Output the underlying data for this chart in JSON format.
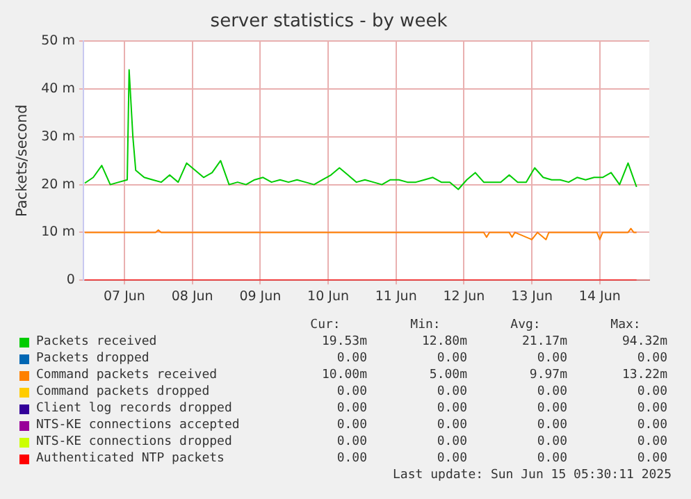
{
  "chart_data": {
    "type": "line",
    "title": "server statistics - by week",
    "ylabel": "Packets/second",
    "xlim": [
      "2025-06-06T21:30",
      "2025-06-15T05:30"
    ],
    "xticks": [
      {
        "value": "2025-06-07T12:00",
        "label": "07 Jun"
      },
      {
        "value": "2025-06-08T12:00",
        "label": "08 Jun"
      },
      {
        "value": "2025-06-09T12:00",
        "label": "09 Jun"
      },
      {
        "value": "2025-06-10T12:00",
        "label": "10 Jun"
      },
      {
        "value": "2025-06-11T12:00",
        "label": "11 Jun"
      },
      {
        "value": "2025-06-12T12:00",
        "label": "12 Jun"
      },
      {
        "value": "2025-06-13T12:00",
        "label": "13 Jun"
      },
      {
        "value": "2025-06-14T12:00",
        "label": "14 Jun"
      }
    ],
    "ylim": [
      0,
      50
    ],
    "yticks": [
      0,
      {
        "value": 10,
        "label": "10 m"
      },
      {
        "value": 20,
        "label": "20 m"
      },
      {
        "value": 30,
        "label": "30 m"
      },
      {
        "value": 40,
        "label": "40 m"
      },
      {
        "value": 50,
        "label": "50 m"
      }
    ],
    "grid": true,
    "legend": "bottom",
    "marker": "none",
    "line_style": "solid",
    "series": [
      {
        "name": "Packets received",
        "color": "#00cc00",
        "x": [
          "2025-06-06T22:00",
          "2025-06-07T01:00",
          "2025-06-07T04:00",
          "2025-06-07T07:00",
          "2025-06-07T10:00",
          "2025-06-07T13:00",
          "2025-06-07T13:40",
          "2025-06-07T15:00",
          "2025-06-07T16:00",
          "2025-06-07T19:00",
          "2025-06-07T22:00",
          "2025-06-08T01:00",
          "2025-06-08T04:00",
          "2025-06-08T07:00",
          "2025-06-08T10:00",
          "2025-06-08T13:00",
          "2025-06-08T16:00",
          "2025-06-08T19:00",
          "2025-06-08T22:00",
          "2025-06-09T01:00",
          "2025-06-09T04:00",
          "2025-06-09T07:00",
          "2025-06-09T10:00",
          "2025-06-09T13:00",
          "2025-06-09T16:00",
          "2025-06-09T19:00",
          "2025-06-09T22:00",
          "2025-06-10T01:00",
          "2025-06-10T04:00",
          "2025-06-10T07:00",
          "2025-06-10T10:00",
          "2025-06-10T13:00",
          "2025-06-10T16:00",
          "2025-06-10T19:00",
          "2025-06-10T22:00",
          "2025-06-11T01:00",
          "2025-06-11T04:00",
          "2025-06-11T07:00",
          "2025-06-11T10:00",
          "2025-06-11T13:00",
          "2025-06-11T16:00",
          "2025-06-11T19:00",
          "2025-06-11T22:00",
          "2025-06-12T01:00",
          "2025-06-12T04:00",
          "2025-06-12T07:00",
          "2025-06-12T10:00",
          "2025-06-12T13:00",
          "2025-06-12T16:00",
          "2025-06-12T19:00",
          "2025-06-12T22:00",
          "2025-06-13T01:00",
          "2025-06-13T04:00",
          "2025-06-13T07:00",
          "2025-06-13T10:00",
          "2025-06-13T13:00",
          "2025-06-13T16:00",
          "2025-06-13T19:00",
          "2025-06-13T22:00",
          "2025-06-14T01:00",
          "2025-06-14T04:00",
          "2025-06-14T07:00",
          "2025-06-14T10:00",
          "2025-06-14T13:00",
          "2025-06-14T16:00",
          "2025-06-14T19:00",
          "2025-06-14T22:00",
          "2025-06-15T01:00"
        ],
        "values": [
          20.3,
          21.5,
          24,
          20,
          20.5,
          21,
          44,
          30,
          23,
          21.5,
          21,
          20.5,
          22,
          20.5,
          24.5,
          23,
          21.5,
          22.5,
          25,
          20,
          20.5,
          20,
          21,
          21.5,
          20.5,
          21,
          20.5,
          21,
          20.5,
          20,
          21,
          22,
          23.5,
          22,
          20.5,
          21,
          20.5,
          20,
          21,
          21,
          20.5,
          20.5,
          21,
          21.5,
          20.5,
          20.5,
          19,
          21,
          22.5,
          20.5,
          20.5,
          20.5,
          22,
          20.5,
          20.5,
          23.5,
          21.5,
          21,
          21,
          20.5,
          21.5,
          21,
          21.5,
          21.5,
          22.5,
          20,
          24.5,
          19.5
        ]
      },
      {
        "name": "Packets dropped",
        "color": "#0066b3"
      },
      {
        "name": "Command packets received",
        "color": "#ff8000",
        "x": [
          "2025-06-06T22:00",
          "2025-06-07T23:00",
          "2025-06-08T00:00",
          "2025-06-08T01:00",
          "2025-06-12T19:00",
          "2025-06-12T20:00",
          "2025-06-12T21:00",
          "2025-06-13T04:00",
          "2025-06-13T05:00",
          "2025-06-13T06:00",
          "2025-06-13T12:00",
          "2025-06-13T14:00",
          "2025-06-13T17:00",
          "2025-06-13T18:00",
          "2025-06-14T11:00",
          "2025-06-14T12:00",
          "2025-06-14T13:00",
          "2025-06-14T22:00",
          "2025-06-14T23:00",
          "2025-06-15T00:00",
          "2025-06-15T01:00"
        ],
        "values": [
          10,
          10,
          10.5,
          10,
          10,
          9,
          10,
          10,
          9,
          10,
          8.5,
          10,
          8.5,
          10,
          10,
          8.5,
          10,
          10,
          10.8,
          10,
          10
        ]
      },
      {
        "name": "Command packets dropped",
        "color": "#ffcc00"
      },
      {
        "name": "Client log records dropped",
        "color": "#330099"
      },
      {
        "name": "NTS-KE connections accepted",
        "color": "#990099"
      },
      {
        "name": "NTS-KE connections dropped",
        "color": "#ccff00"
      },
      {
        "name": "Authenticated NTP packets",
        "color": "#ff0000",
        "x": [
          "2025-06-06T22:00",
          "2025-06-15T01:00"
        ],
        "values": [
          0,
          0
        ]
      }
    ],
    "annotations": [
      "Cur:",
      "Min:",
      "Avg:",
      "Max:",
      "19.53m",
      "12.80m",
      "21.17m",
      "94.32m",
      "0.00",
      "0.00",
      "0.00",
      "0.00",
      "10.00m",
      "5.00m",
      "9.97m",
      "13.22m",
      "0.00",
      "0.00",
      "0.00",
      "0.00",
      "0.00",
      "0.00",
      "0.00",
      "0.00",
      "0.00",
      "0.00",
      "0.00",
      "0.00",
      "0.00",
      "0.00",
      "0.00",
      "0.00",
      "0.00",
      "0.00",
      "0.00",
      "0.00",
      "Last update: Sun Jun 15 05:30:11 2025"
    ]
  }
}
